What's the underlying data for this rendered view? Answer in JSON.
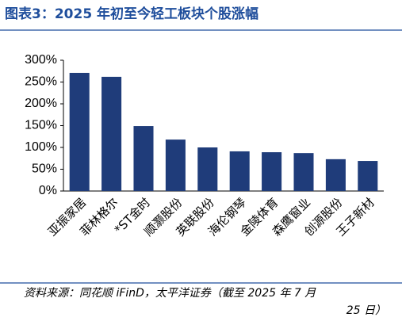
{
  "chart_data": {
    "type": "bar",
    "title": "图表3：2025 年初至今轻工板块个股涨幅",
    "source_lines": [
      "资料来源：同花顺 iFinD，太平洋证券（截至 2025 年 7 月",
      "25 日）"
    ],
    "categories": [
      "亚振家居",
      "菲林格尔",
      "*ST金时",
      "顺灏股份",
      "英联股份",
      "海伦钢琴",
      "金陵体育",
      "森鹰窗业",
      "创源股份",
      "王子新材"
    ],
    "values": [
      271,
      262,
      149,
      118,
      100,
      91,
      89,
      87,
      73,
      69
    ],
    "color": "#1f3c7a",
    "ylim": [
      0,
      300
    ],
    "yticks": [
      {
        "value": 0,
        "label": "0%"
      },
      {
        "value": 50,
        "label": "50%"
      },
      {
        "value": 100,
        "label": "100%"
      },
      {
        "value": 150,
        "label": "150%"
      },
      {
        "value": 200,
        "label": "200%"
      },
      {
        "value": 250,
        "label": "250%"
      },
      {
        "value": 300,
        "label": "300%"
      }
    ],
    "grid": false
  }
}
